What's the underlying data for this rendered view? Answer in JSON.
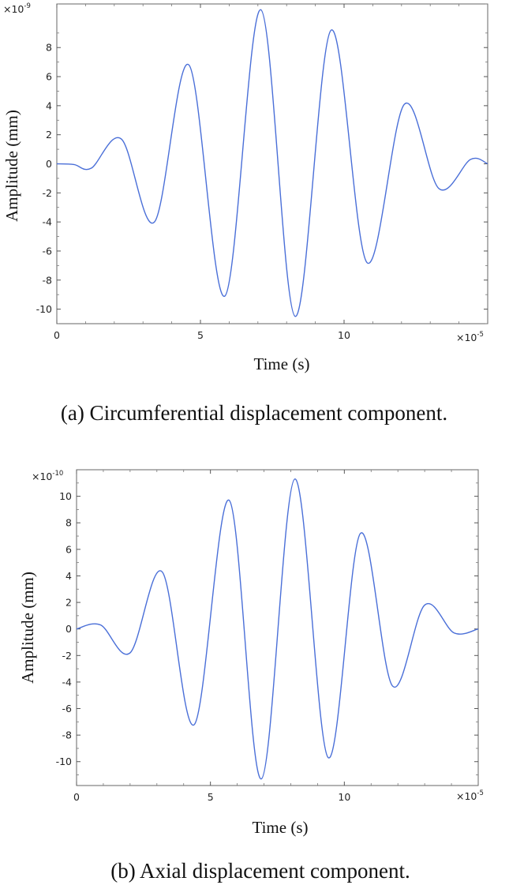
{
  "chart_data": [
    {
      "type": "line",
      "xlabel": "Time (s)",
      "ylabel": "Amplitude (mm)",
      "x_multiplier": "×10",
      "x_multiplier_exp": "-5",
      "y_multiplier": "×10",
      "y_multiplier_exp": "-9",
      "caption": "(a) Circumferential displacement component.",
      "xlim": [
        0,
        15
      ],
      "ylim": [
        -11,
        11
      ],
      "xticks": [
        "0",
        "5",
        "10"
      ],
      "yticks": [
        "8",
        "6",
        "4",
        "2",
        "0",
        "-2",
        "-4",
        "-6",
        "-8",
        "-10"
      ],
      "grid": false,
      "color": "#4a6fd8",
      "series": [
        {
          "x": [
            0,
            0.6,
            1.2,
            2.25,
            3.4,
            4.6,
            5.85,
            7.1,
            8.3,
            9.55,
            10.8,
            12.1,
            13.3,
            14.4,
            15
          ],
          "y": [
            0,
            -0.05,
            -0.3,
            1.7,
            -4.0,
            6.8,
            -9.1,
            10.6,
            -10.5,
            9.2,
            -6.8,
            4.1,
            -1.7,
            0.3,
            0
          ]
        }
      ]
    },
    {
      "type": "line",
      "xlabel": "Time (s)",
      "ylabel": "Amplitude (mm)",
      "x_multiplier": "×10",
      "x_multiplier_exp": "-5",
      "y_multiplier": "×10",
      "y_multiplier_exp": "-10",
      "caption": "(b) Axial displacement component.",
      "xlim": [
        0,
        15
      ],
      "ylim": [
        -11.8,
        12
      ],
      "xticks": [
        "0",
        "5",
        "10"
      ],
      "yticks": [
        "10",
        "8",
        "6",
        "4",
        "2",
        "0",
        "-2",
        "-4",
        "-6",
        "-8",
        "-10"
      ],
      "grid": false,
      "color": "#4a6fd8",
      "series": [
        {
          "x": [
            0,
            0.9,
            2.0,
            3.2,
            4.4,
            5.7,
            6.9,
            8.15,
            9.4,
            10.6,
            11.8,
            13.0,
            14.1,
            15
          ],
          "y": [
            0,
            0.3,
            -1.8,
            4.3,
            -7.2,
            9.7,
            -11.3,
            11.3,
            -9.7,
            7.2,
            -4.3,
            1.8,
            -0.3,
            0
          ]
        }
      ]
    }
  ]
}
